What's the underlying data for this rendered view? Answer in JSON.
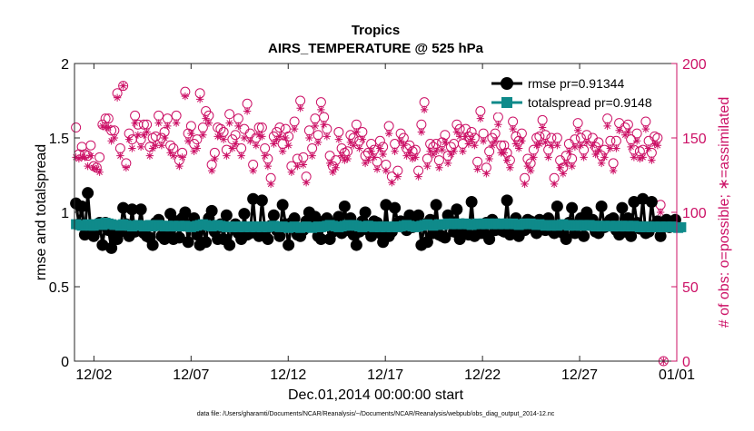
{
  "chart_data": {
    "type": "line",
    "title": "Tropics",
    "subtitle": "AIRS_TEMPERATURE @ 525 hPa",
    "xlabel": "Dec.01,2014 00:00:00 start",
    "ylabel": "rmse and totalspread",
    "y2label": "# of obs: o=possible; ∗=assimilated",
    "footnote": "data file: /Users/gharamti/Documents/NCAR/Reanalysis/~/Documents/NCAR/Reanalysis/webpub/obs_diag_output_2014-12.nc",
    "xlim": [
      0.5,
      31.5
    ],
    "ylim": [
      0,
      2
    ],
    "y2lim": [
      0,
      200
    ],
    "xticks": [
      2,
      7,
      12,
      17,
      22,
      27,
      32
    ],
    "xticklabels": [
      "12/02",
      "12/07",
      "12/12",
      "12/17",
      "12/22",
      "12/27",
      "01/01"
    ],
    "yticks": [
      0,
      0.5,
      1,
      1.5,
      2
    ],
    "yticklabels": [
      "0",
      "0.5",
      "1",
      "1.5",
      "2"
    ],
    "y2ticks": [
      0,
      50,
      100,
      150,
      200
    ],
    "y2ticklabels": [
      "0",
      "50",
      "100",
      "150",
      "200"
    ],
    "legend_position": "top-right",
    "colors": {
      "rmse": "#000000",
      "spread": "#0f8a8a",
      "obs": "#cc1166"
    },
    "series": [
      {
        "name": "rmse pr=0.91344",
        "legend": "rmse pr=0.91344",
        "axis": "left",
        "marker": "circle",
        "values": [
          1.06,
          0.92,
          1.04,
          0.85,
          1.13,
          0.88,
          0.84,
          0.88,
          0.93,
          0.78,
          0.93,
          0.88,
          0.76,
          0.84,
          0.82,
          0.87,
          1.03,
          0.92,
          0.84,
          1.02,
          0.87,
          0.88,
          1.02,
          0.86,
          0.84,
          0.83,
          0.78,
          0.93,
          0.95,
          0.84,
          0.82,
          0.86,
          0.99,
          0.82,
          0.94,
          0.83,
          0.96,
          1.0,
          0.8,
          0.92,
          0.96,
          0.85,
          0.78,
          0.91,
          0.8,
          0.96,
          1.01,
          0.87,
          0.82,
          0.92,
          0.82,
          0.98,
          0.78,
          0.9,
          0.92,
          0.86,
          0.82,
          0.99,
          0.85,
          0.86,
          1.09,
          0.86,
          0.84,
          1.08,
          0.89,
          0.82,
          0.91,
          0.98,
          0.88,
          0.84,
          1.05,
          0.92,
          0.78,
          0.93,
          0.96,
          0.85,
          0.84,
          0.88,
          0.94,
          1.0,
          0.93,
          0.97,
          0.84,
          0.82,
          0.94,
          0.96,
          0.82,
          0.87,
          0.93,
          0.97,
          0.86,
          1.04,
          0.88,
          0.96,
          0.85,
          0.78,
          0.87,
          0.94,
          1.0,
          0.88,
          0.84,
          0.94,
          0.93,
          0.86,
          0.8,
          1.05,
          0.84,
          0.87,
          1.03,
          0.93,
          0.94,
          0.9,
          0.88,
          0.98,
          0.9,
          0.95,
          0.98,
          0.78,
          0.92,
          0.8,
          0.95,
          0.86,
          1.05,
          0.85,
          0.84,
          0.83,
          0.98,
          0.94,
          0.87,
          1.02,
          0.82,
          0.92,
          0.88,
          0.85,
          1.07,
          0.84,
          0.91,
          0.86,
          0.86,
          0.93,
          0.82,
          0.95,
          0.88,
          0.92,
          0.88,
          0.87,
          1.08,
          0.85,
          0.86,
          0.96,
          0.84,
          0.88,
          0.88,
          0.95,
          0.94,
          0.89,
          0.86,
          0.95,
          0.93,
          0.88,
          0.96,
          0.88,
          0.86,
          1.04,
          0.87,
          0.86,
          0.82,
          0.93,
          1.03,
          0.86,
          0.92,
          0.96,
          0.84,
          1.0,
          0.93,
          0.95,
          0.87,
          0.86,
          1.04,
          0.9,
          0.92,
          0.95,
          0.96,
          0.88,
          0.85,
          1.03,
          0.87,
          0.96,
          0.84,
          1.07,
          0.93,
          0.89,
          1.09,
          0.86,
          0.87,
          1.07,
          0.91,
          0.94,
          0.84,
          0.9,
          0.95,
          0.9,
          0.94,
          0.95
        ]
      },
      {
        "name": "totalspread pr=0.9148",
        "legend": "totalspread pr=0.9148",
        "axis": "left",
        "marker": "square",
        "values": [
          0.92,
          0.915,
          0.91,
          0.915,
          0.92,
          0.91,
          0.91,
          0.92,
          0.925,
          0.915,
          0.93,
          0.925,
          0.92,
          0.915,
          0.915,
          0.91,
          0.92,
          0.915,
          0.91,
          0.905,
          0.91,
          0.915,
          0.91,
          0.905,
          0.91,
          0.915,
          0.905,
          0.91,
          0.915,
          0.91,
          0.905,
          0.91,
          0.905,
          0.91,
          0.905,
          0.91,
          0.905,
          0.91,
          0.905,
          0.9,
          0.905,
          0.91,
          0.915,
          0.92,
          0.915,
          0.91,
          0.905,
          0.91,
          0.915,
          0.91,
          0.905,
          0.9,
          0.905,
          0.9,
          0.905,
          0.9,
          0.905,
          0.9,
          0.905,
          0.9,
          0.905,
          0.9,
          0.905,
          0.9,
          0.905,
          0.9,
          0.905,
          0.91,
          0.905,
          0.9,
          0.905,
          0.9,
          0.895,
          0.9,
          0.905,
          0.9,
          0.895,
          0.9,
          0.905,
          0.9,
          0.895,
          0.9,
          0.905,
          0.9,
          0.905,
          0.91,
          0.915,
          0.91,
          0.905,
          0.9,
          0.905,
          0.91,
          0.915,
          0.91,
          0.915,
          0.91,
          0.905,
          0.9,
          0.905,
          0.91,
          0.905,
          0.9,
          0.905,
          0.9,
          0.905,
          0.9,
          0.905,
          0.9,
          0.905,
          0.9,
          0.905,
          0.91,
          0.915,
          0.91,
          0.905,
          0.9,
          0.905,
          0.91,
          0.915,
          0.92,
          0.915,
          0.91,
          0.915,
          0.92,
          0.915,
          0.92,
          0.925,
          0.92,
          0.925,
          0.92,
          0.925,
          0.92,
          0.925,
          0.92,
          0.915,
          0.92,
          0.925,
          0.92,
          0.925,
          0.92,
          0.925,
          0.92,
          0.925,
          0.92,
          0.925,
          0.92,
          0.925,
          0.92,
          0.925,
          0.92,
          0.915,
          0.92,
          0.925,
          0.92,
          0.925,
          0.92,
          0.915,
          0.92,
          0.915,
          0.91,
          0.915,
          0.91,
          0.915,
          0.91,
          0.915,
          0.92,
          0.915,
          0.91,
          0.915,
          0.91,
          0.915,
          0.91,
          0.915,
          0.91,
          0.915,
          0.91,
          0.905,
          0.91,
          0.905,
          0.91,
          0.905,
          0.91,
          0.905,
          0.91,
          0.905,
          0.91,
          0.905,
          0.91,
          0.905,
          0.91,
          0.905,
          0.9,
          0.905,
          0.9,
          0.905,
          0.9,
          0.905,
          0.9,
          0.905,
          0.9,
          0.905,
          0.9,
          0.905,
          0.9,
          0.895,
          0.9
        ]
      },
      {
        "name": "# of obs possible",
        "axis": "right",
        "marker": "circle-open",
        "values": [
          157,
          139,
          144,
          139,
          138,
          145,
          131,
          130,
          137,
          159,
          163,
          163,
          155,
          155,
          180,
          143,
          185,
          133,
          153,
          149,
          165,
          159,
          149,
          159,
          159,
          144,
          150,
          151,
          165,
          150,
          154,
          163,
          145,
          143,
          165,
          135,
          140,
          181,
          153,
          158,
          146,
          149,
          180,
          157,
          168,
          165,
          132,
          140,
          157,
          156,
          154,
          142,
          166,
          149,
          152,
          163,
          143,
          156,
          173,
          153,
          132,
          150,
          157,
          157,
          143,
          136,
          123,
          151,
          154,
          157,
          146,
          156,
          151,
          131,
          161,
          136,
          175,
          137,
          124,
          155,
          143,
          163,
          152,
          174,
          164,
          156,
          138,
          131,
          135,
          154,
          143,
          140,
          141,
          152,
          150,
          159,
          148,
          154,
          138,
          140,
          146,
          142,
          134,
          148,
          144,
          132,
          158,
          124,
          146,
          128,
          153,
          150,
          143,
          145,
          141,
          142,
          128,
          159,
          174,
          136,
          146,
          144,
          146,
          135,
          147,
          152,
          138,
          144,
          146,
          159,
          156,
          146,
          156,
          151,
          154,
          150,
          134,
          168,
          153,
          130,
          141,
          150,
          153,
          164,
          145,
          145,
          140,
          135,
          161,
          151,
          148,
          153,
          123,
          136,
          133,
          142,
          150,
          151,
          162,
          152,
          142,
          150,
          123,
          150,
          135,
          130,
          138,
          146,
          136,
          149,
          160,
          150,
          142,
          152,
          178,
          150,
          144,
          147,
          138,
          142,
          163,
          148,
          133,
          148,
          160,
          175,
          157,
          159,
          149,
          142,
          153,
          141,
          142,
          161,
          148,
          140,
          151,
          150,
          105,
          0
        ]
      },
      {
        "name": "# of obs assimilated",
        "axis": "right",
        "marker": "star",
        "values": [
          137,
          136,
          137,
          137,
          131,
          138,
          130,
          129,
          127,
          158,
          157,
          157,
          148,
          150,
          177,
          138,
          185,
          130,
          149,
          143,
          160,
          152,
          144,
          152,
          154,
          138,
          143,
          145,
          160,
          145,
          150,
          158,
          140,
          138,
          160,
          131,
          137,
          178,
          148,
          153,
          141,
          143,
          176,
          152,
          163,
          160,
          128,
          136,
          151,
          151,
          149,
          138,
          160,
          143,
          146,
          158,
          138,
          150,
          168,
          148,
          128,
          145,
          152,
          151,
          138,
          131,
          119,
          146,
          149,
          151,
          141,
          150,
          145,
          127,
          156,
          131,
          170,
          132,
          120,
          150,
          138,
          158,
          147,
          169,
          159,
          151,
          133,
          127,
          130,
          149,
          138,
          135,
          136,
          147,
          145,
          154,
          143,
          149,
          133,
          135,
          141,
          137,
          129,
          143,
          139,
          128,
          153,
          120,
          141,
          124,
          148,
          145,
          138,
          140,
          136,
          137,
          124,
          154,
          169,
          131,
          141,
          139,
          141,
          130,
          142,
          147,
          133,
          139,
          141,
          154,
          151,
          141,
          151,
          146,
          149,
          145,
          129,
          163,
          148,
          126,
          136,
          145,
          148,
          159,
          140,
          140,
          135,
          130,
          156,
          146,
          143,
          148,
          119,
          131,
          128,
          137,
          145,
          146,
          157,
          147,
          137,
          145,
          119,
          145,
          130,
          126,
          133,
          141,
          131,
          144,
          155,
          145,
          137,
          147,
          173,
          145,
          139,
          142,
          133,
          137,
          158,
          143,
          128,
          143,
          155,
          170,
          152,
          154,
          144,
          137,
          148,
          136,
          137,
          156,
          143,
          135,
          146,
          145,
          100,
          0
        ]
      }
    ]
  }
}
